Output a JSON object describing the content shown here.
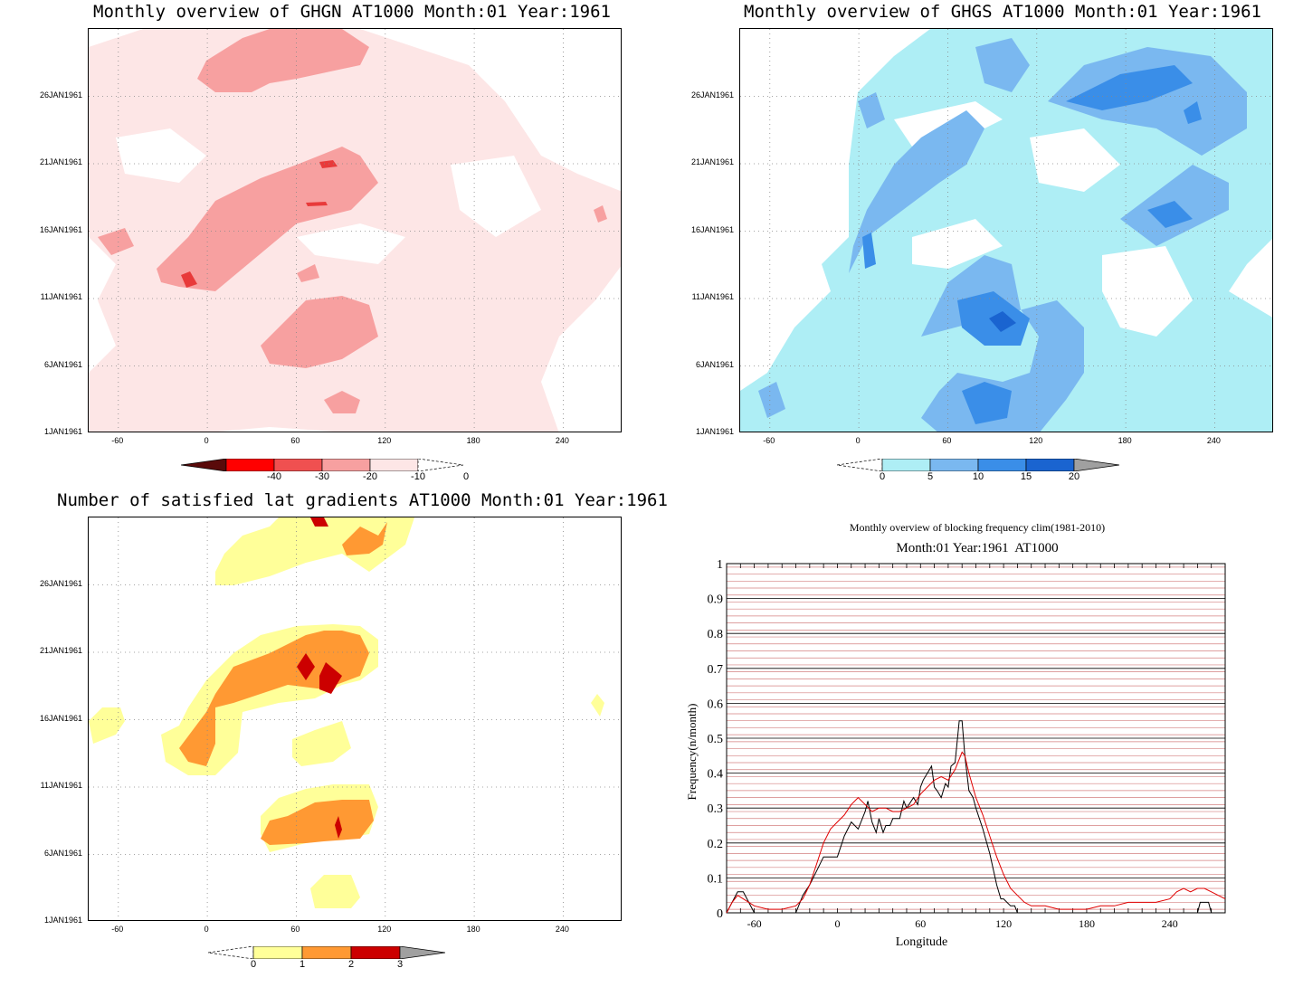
{
  "chart_data": [
    {
      "type": "heatmap",
      "title": "Monthly overview of GHGN AT1000 Month:01 Year:1961",
      "x_ticks": [
        "-60",
        "0",
        "60",
        "120",
        "180",
        "240"
      ],
      "x_tick_values": [
        -60,
        0,
        60,
        120,
        180,
        240
      ],
      "xlim": [
        -80,
        280
      ],
      "y_ticks": [
        "1JAN1961",
        "6JAN1961",
        "11JAN1961",
        "16JAN1961",
        "21JAN1961",
        "26JAN1961"
      ],
      "y_tick_values": [
        1,
        6,
        11,
        16,
        21,
        26
      ],
      "ylim": [
        1,
        31
      ],
      "colorbar": {
        "labels": [
          "-40",
          "-30",
          "-20",
          "-10",
          "0"
        ],
        "colors": [
          "#5a0a0a",
          "#ff0000",
          "#f05050",
          "#f7a0a0",
          "#fde6e6"
        ]
      },
      "colors": {
        "light": "#fde6e6",
        "mid": "#f7a0a0",
        "dark": "#e83a3a"
      }
    },
    {
      "type": "heatmap",
      "title": "Monthly overview of GHGS AT1000 Month:01 Year:1961",
      "x_ticks": [
        "-60",
        "0",
        "60",
        "120",
        "180",
        "240"
      ],
      "x_tick_values": [
        -60,
        0,
        60,
        120,
        180,
        240
      ],
      "xlim": [
        -80,
        280
      ],
      "y_ticks": [
        "1JAN1961",
        "6JAN1961",
        "11JAN1961",
        "16JAN1961",
        "21JAN1961",
        "26JAN1961"
      ],
      "y_tick_values": [
        1,
        6,
        11,
        16,
        21,
        26
      ],
      "ylim": [
        1,
        31
      ],
      "colorbar": {
        "labels": [
          "0",
          "5",
          "10",
          "15",
          "20"
        ],
        "colors": [
          "#aeeef5",
          "#7ab8f0",
          "#3a8ee8",
          "#1a64d0",
          "#a0a0a0"
        ]
      },
      "colors": {
        "light": "#aeeef5",
        "mid": "#7ab8f0",
        "dark": "#3a8ee8",
        "darker": "#1a64d0"
      }
    },
    {
      "type": "heatmap",
      "title": "Number of satisfied lat gradients AT1000 Month:01 Year:1961",
      "x_ticks": [
        "-60",
        "0",
        "60",
        "120",
        "180",
        "240"
      ],
      "x_tick_values": [
        -60,
        0,
        60,
        120,
        180,
        240
      ],
      "xlim": [
        -80,
        280
      ],
      "y_ticks": [
        "1JAN1961",
        "6JAN1961",
        "11JAN1961",
        "16JAN1961",
        "21JAN1961",
        "26JAN1961"
      ],
      "y_tick_values": [
        1,
        6,
        11,
        16,
        21,
        26
      ],
      "ylim": [
        1,
        31
      ],
      "colorbar": {
        "labels": [
          "0",
          "1",
          "2",
          "3"
        ],
        "colors": [
          "#ffff99",
          "#ff9933",
          "#cc0000",
          "#a0a0a0"
        ]
      },
      "colors": {
        "light": "#ffff99",
        "mid": "#ff9933",
        "dark": "#cc0000"
      }
    },
    {
      "type": "line",
      "title": "Monthly overview of blocking frequency clim(1981-2010)",
      "subtitle": "Month:01 Year:1961  AT1000",
      "xlabel": "Longitude",
      "ylabel": "Frequency(n/month)",
      "xlim": [
        -80,
        280
      ],
      "ylim": [
        0,
        1
      ],
      "x_ticks": [
        "-60",
        "0",
        "60",
        "120",
        "180",
        "240"
      ],
      "x_tick_values": [
        -60,
        0,
        60,
        120,
        180,
        240
      ],
      "y_ticks": [
        "0",
        "0.1",
        "0.2",
        "0.3",
        "0.4",
        "0.5",
        "0.6",
        "0.7",
        "0.8",
        "0.9",
        "1"
      ],
      "y_tick_values": [
        0,
        0.1,
        0.2,
        0.3,
        0.4,
        0.5,
        0.6,
        0.7,
        0.8,
        0.9,
        1
      ],
      "series": [
        {
          "color": "#000000",
          "x": [
            -80,
            -76,
            -72,
            -68,
            -64,
            -60,
            -40,
            -30,
            -28,
            -25,
            -20,
            -15,
            -10,
            -5,
            0,
            5,
            10,
            15,
            18,
            20,
            22,
            25,
            28,
            30,
            33,
            35,
            38,
            40,
            45,
            48,
            50,
            55,
            58,
            60,
            62,
            65,
            68,
            70,
            72,
            75,
            78,
            80,
            82,
            85,
            88,
            90,
            92,
            95,
            98,
            100,
            105,
            110,
            115,
            118,
            120,
            125,
            128,
            130,
            132,
            200,
            260,
            262,
            265,
            268,
            270,
            280
          ],
          "y": [
            0,
            0.03,
            0.06,
            0.06,
            0.03,
            0,
            0,
            0,
            0.02,
            0.05,
            0.08,
            0.12,
            0.16,
            0.16,
            0.16,
            0.22,
            0.26,
            0.24,
            0.27,
            0.29,
            0.32,
            0.26,
            0.23,
            0.27,
            0.23,
            0.25,
            0.25,
            0.27,
            0.27,
            0.32,
            0.3,
            0.33,
            0.31,
            0.36,
            0.38,
            0.4,
            0.42,
            0.36,
            0.35,
            0.33,
            0.37,
            0.36,
            0.42,
            0.43,
            0.55,
            0.55,
            0.45,
            0.35,
            0.33,
            0.3,
            0.24,
            0.17,
            0.08,
            0.04,
            0.04,
            0.02,
            0.02,
            0,
            0,
            0,
            0,
            0.03,
            0.03,
            0.03,
            0,
            0
          ]
        },
        {
          "color": "#e00000",
          "x": [
            -80,
            -76,
            -72,
            -68,
            -64,
            -60,
            -50,
            -40,
            -30,
            -25,
            -20,
            -15,
            -10,
            -5,
            0,
            5,
            10,
            15,
            20,
            25,
            30,
            35,
            40,
            45,
            50,
            55,
            60,
            65,
            70,
            75,
            80,
            85,
            88,
            90,
            92,
            95,
            100,
            105,
            110,
            115,
            120,
            125,
            130,
            135,
            140,
            150,
            160,
            170,
            180,
            190,
            200,
            210,
            220,
            230,
            240,
            245,
            250,
            255,
            260,
            265,
            270,
            275,
            280
          ],
          "y": [
            0,
            0.03,
            0.05,
            0.04,
            0.03,
            0.02,
            0.01,
            0.01,
            0.02,
            0.04,
            0.08,
            0.14,
            0.2,
            0.24,
            0.26,
            0.28,
            0.31,
            0.33,
            0.31,
            0.29,
            0.3,
            0.3,
            0.29,
            0.29,
            0.3,
            0.31,
            0.34,
            0.36,
            0.38,
            0.39,
            0.38,
            0.41,
            0.44,
            0.46,
            0.45,
            0.4,
            0.33,
            0.28,
            0.22,
            0.16,
            0.11,
            0.07,
            0.05,
            0.03,
            0.02,
            0.02,
            0.01,
            0.01,
            0.01,
            0.02,
            0.02,
            0.03,
            0.03,
            0.03,
            0.04,
            0.06,
            0.07,
            0.06,
            0.07,
            0.07,
            0.06,
            0.05,
            0.04
          ]
        }
      ]
    }
  ]
}
